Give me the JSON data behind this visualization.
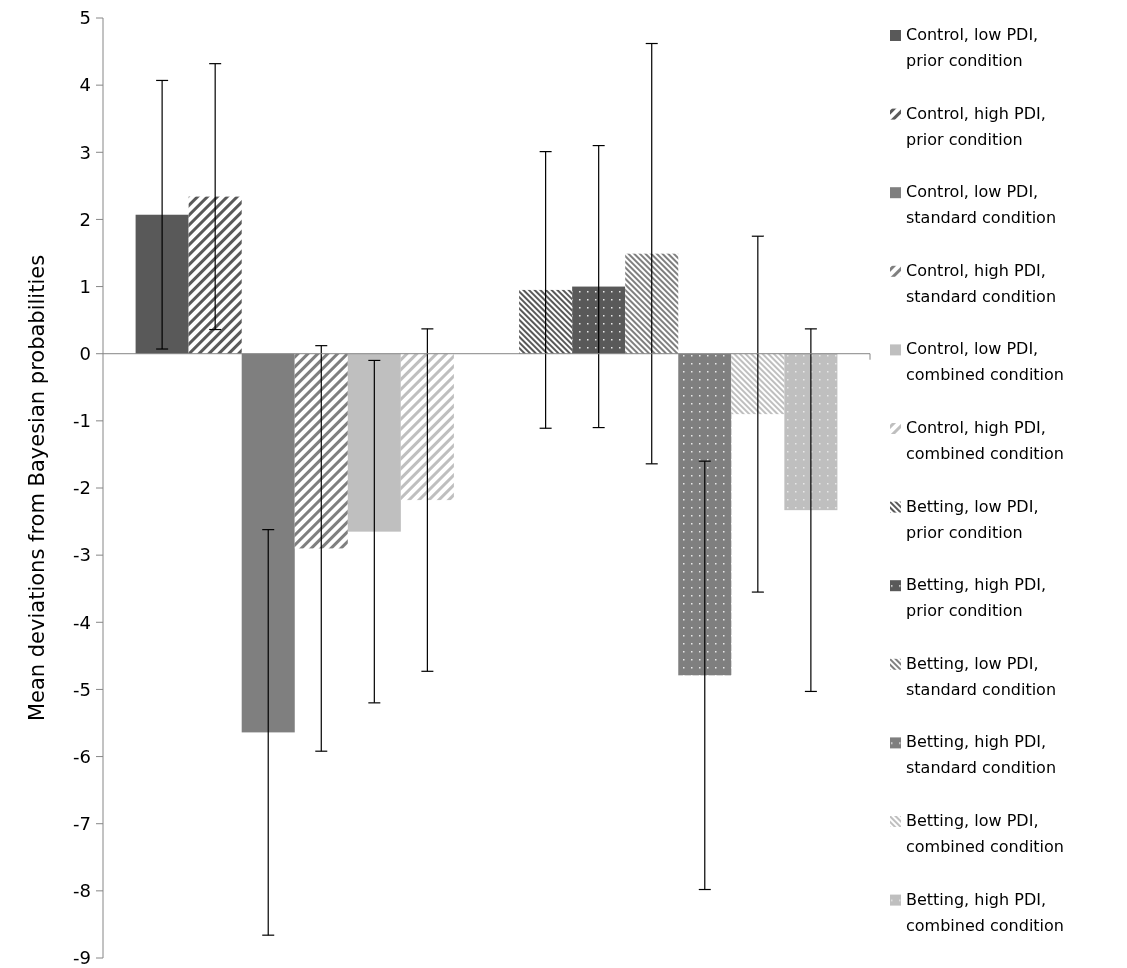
{
  "chart_data": {
    "type": "bar",
    "ylabel": "Mean deviations from Bayesian probabilities",
    "categories": [
      null,
      null
    ],
    "ylim": [
      -9,
      5
    ],
    "yticks": [
      -9,
      -8,
      -7,
      -6,
      -5,
      -4,
      -3,
      -2,
      -1,
      0,
      1,
      2,
      3,
      4,
      5
    ],
    "legend": "right",
    "series": [
      {
        "name": "Control, low PDI, prior condition",
        "color": "#595959",
        "values": [
          2.07,
          null
        ],
        "errors": [
          2.0,
          null
        ]
      },
      {
        "name": "Control, high PDI, prior condition",
        "color": "#595959",
        "values": [
          2.34,
          null
        ],
        "errors": [
          1.98,
          null
        ]
      },
      {
        "name": "Control, low PDI, standard condition",
        "color": "#7f7f7f",
        "values": [
          -5.64,
          null
        ],
        "errors": [
          3.02,
          null
        ]
      },
      {
        "name": "Control, high PDI, standard condition",
        "color": "#7f7f7f",
        "values": [
          -2.9,
          null
        ],
        "errors": [
          3.02,
          null
        ]
      },
      {
        "name": "Control, low PDI, combined condition",
        "color": "#bfbfbf",
        "values": [
          -2.65,
          null
        ],
        "errors": [
          2.55,
          null
        ]
      },
      {
        "name": "Control, high PDI, combined condition",
        "color": "#bfbfbf",
        "values": [
          -2.18,
          null
        ],
        "errors": [
          2.55,
          null
        ]
      },
      {
        "name": "Betting, low PDI, prior condition",
        "color": "#595959",
        "values": [
          null,
          0.95
        ],
        "errors": [
          null,
          2.06
        ]
      },
      {
        "name": "Betting, high PDI, prior condition",
        "color": "#595959",
        "values": [
          null,
          1.0
        ],
        "errors": [
          null,
          2.1
        ]
      },
      {
        "name": "Betting, low PDI, standard condition",
        "color": "#7f7f7f",
        "values": [
          null,
          1.49
        ],
        "errors": [
          null,
          3.13
        ]
      },
      {
        "name": "Betting, high PDI, standard condition",
        "color": "#7f7f7f",
        "values": [
          null,
          -4.79
        ],
        "errors": [
          null,
          3.19
        ]
      },
      {
        "name": "Betting, low PDI, combined condition",
        "color": "#bfbfbf",
        "values": [
          null,
          -0.9
        ],
        "errors": [
          null,
          2.65
        ]
      },
      {
        "name": "Betting, high PDI, combined condition",
        "color": "#bfbfbf",
        "values": [
          null,
          -2.33
        ],
        "errors": [
          null,
          2.7
        ]
      }
    ]
  }
}
